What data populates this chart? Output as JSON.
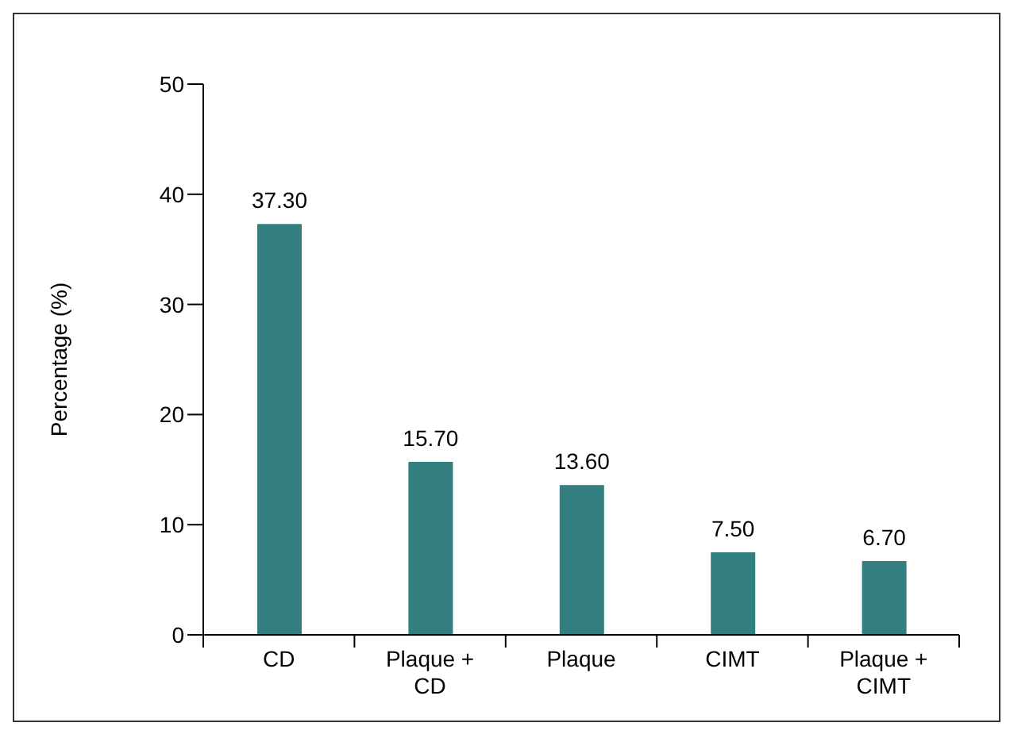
{
  "chart_data": {
    "type": "bar",
    "ylabel": "Percentage (%)",
    "categories": [
      "CD",
      "Plaque + CD",
      "Plaque",
      "CIMT",
      "Plaque + CIMT"
    ],
    "values": [
      37.3,
      15.7,
      13.6,
      7.5,
      6.7
    ],
    "value_labels": [
      "37.30",
      "15.70",
      "13.60",
      "7.50",
      "6.70"
    ],
    "color": "#337f7f",
    "ylim": [
      0,
      50
    ],
    "yticks": [
      0,
      10,
      20,
      30,
      40,
      50
    ],
    "grid": false
  }
}
